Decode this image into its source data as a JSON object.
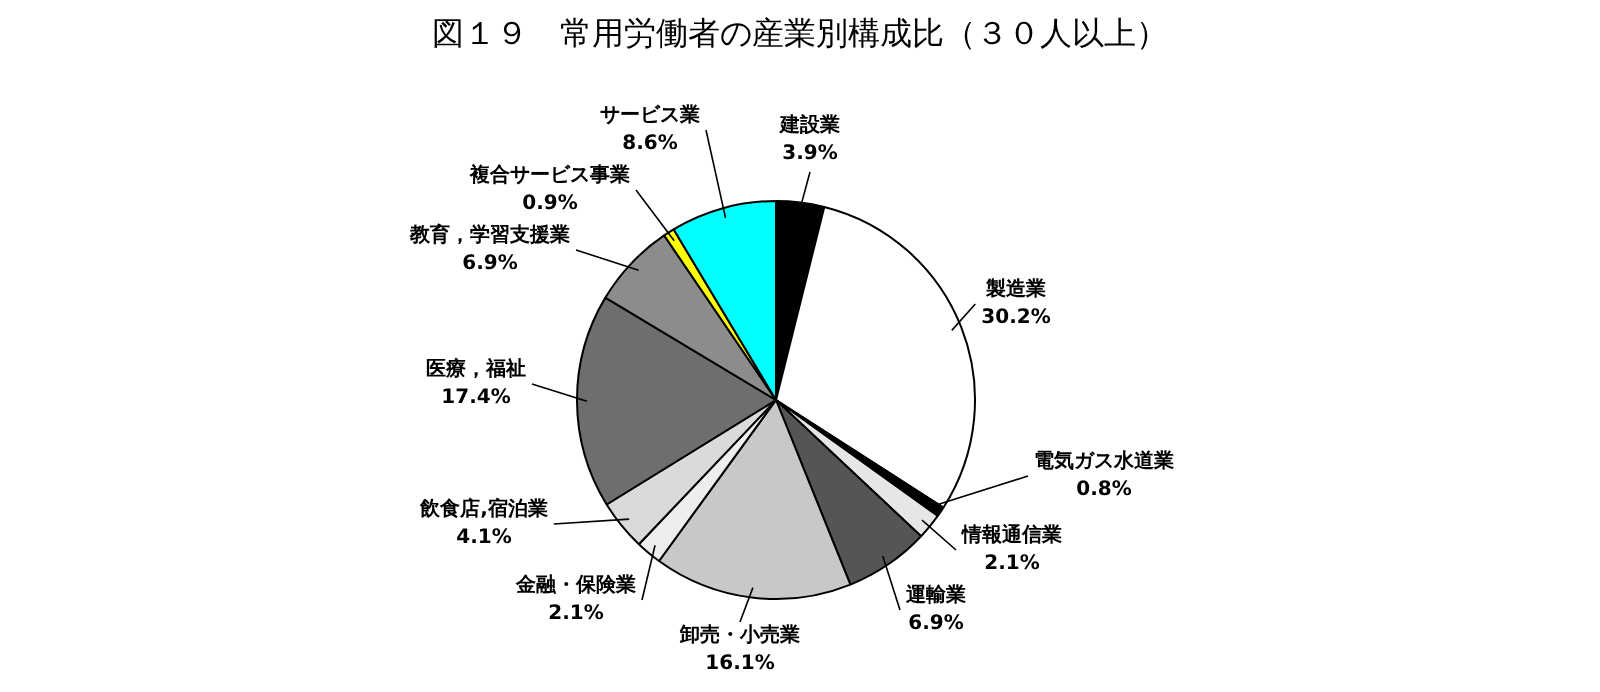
{
  "chart_data": {
    "type": "pie",
    "title": "図１９　常用労働者の産業別構成比（３０人以上）",
    "categories": [
      "建設業",
      "製造業",
      "電気ガス水道業",
      "情報通信業",
      "運輸業",
      "卸売・小売業",
      "金融・保険業",
      "飲食店,宿泊業",
      "医療，福祉",
      "教育，学習支援業",
      "複合サービス事業",
      "サービス業"
    ],
    "values": [
      3.9,
      30.2,
      0.8,
      2.1,
      6.9,
      16.1,
      2.1,
      4.1,
      17.4,
      6.9,
      0.9,
      8.6
    ],
    "value_labels": [
      "3.9%",
      "30.2%",
      "0.8%",
      "2.1%",
      "6.9%",
      "16.1%",
      "2.1%",
      "4.1%",
      "17.4%",
      "6.9%",
      "0.9%",
      "8.6%"
    ],
    "colors": [
      "#000000",
      "#ffffff",
      "#000000",
      "#e6e6e6",
      "#555555",
      "#c8c8c8",
      "#eeeeee",
      "#dadada",
      "#6e6e6e",
      "#8c8c8c",
      "#ffff00",
      "#00ffff"
    ],
    "legend": false
  }
}
